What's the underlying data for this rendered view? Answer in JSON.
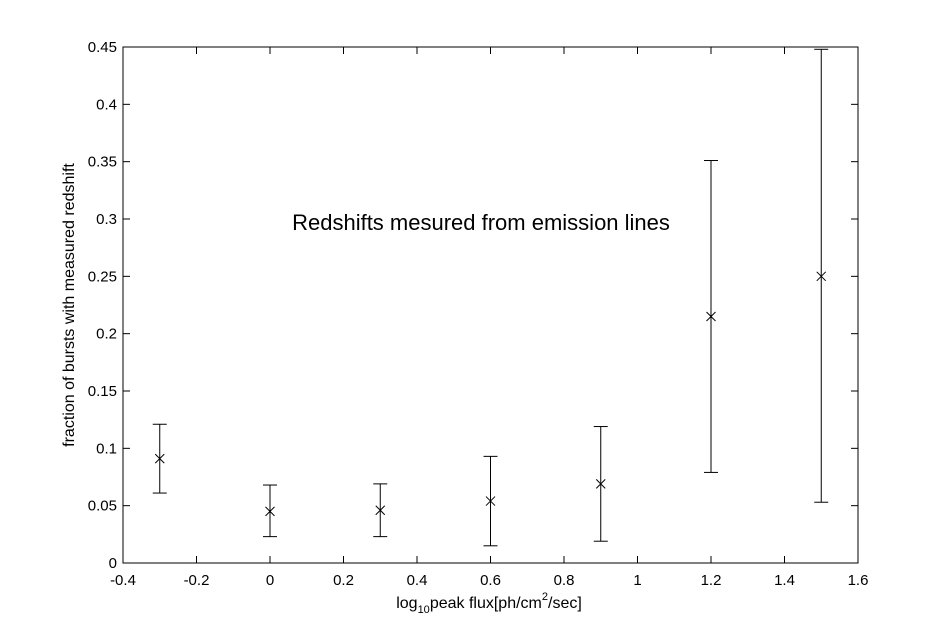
{
  "chart_data": {
    "type": "scatter",
    "title": "",
    "xlabel": {
      "prefix": "log",
      "sub": "10",
      "middle": "peak flux[ph/cm",
      "sup": "2",
      "suffix": "/sec]"
    },
    "ylabel": "fraction of bursts with measured redshift",
    "annotation": "Redshifts mesured from emission lines",
    "xlim": [
      -0.4,
      1.6
    ],
    "ylim": [
      0,
      0.45
    ],
    "xticks": [
      "-0.4",
      "-0.2",
      "0",
      "0.2",
      "0.4",
      "0.6",
      "0.8",
      "1",
      "1.2",
      "1.4",
      "1.6"
    ],
    "yticks": [
      "0",
      "0.05",
      "0.1",
      "0.15",
      "0.2",
      "0.25",
      "0.3",
      "0.35",
      "0.4",
      "0.45"
    ],
    "grid": false,
    "marker": "x",
    "points": [
      {
        "x": -0.3,
        "y": 0.091,
        "err_low": 0.061,
        "err_high": 0.121
      },
      {
        "x": 0.0,
        "y": 0.045,
        "err_low": 0.023,
        "err_high": 0.068
      },
      {
        "x": 0.3,
        "y": 0.046,
        "err_low": 0.023,
        "err_high": 0.069
      },
      {
        "x": 0.6,
        "y": 0.054,
        "err_low": 0.015,
        "err_high": 0.093
      },
      {
        "x": 0.9,
        "y": 0.069,
        "err_low": 0.019,
        "err_high": 0.119
      },
      {
        "x": 1.2,
        "y": 0.215,
        "err_low": 0.079,
        "err_high": 0.351
      },
      {
        "x": 1.5,
        "y": 0.25,
        "err_low": 0.053,
        "err_high": 0.448
      }
    ]
  }
}
